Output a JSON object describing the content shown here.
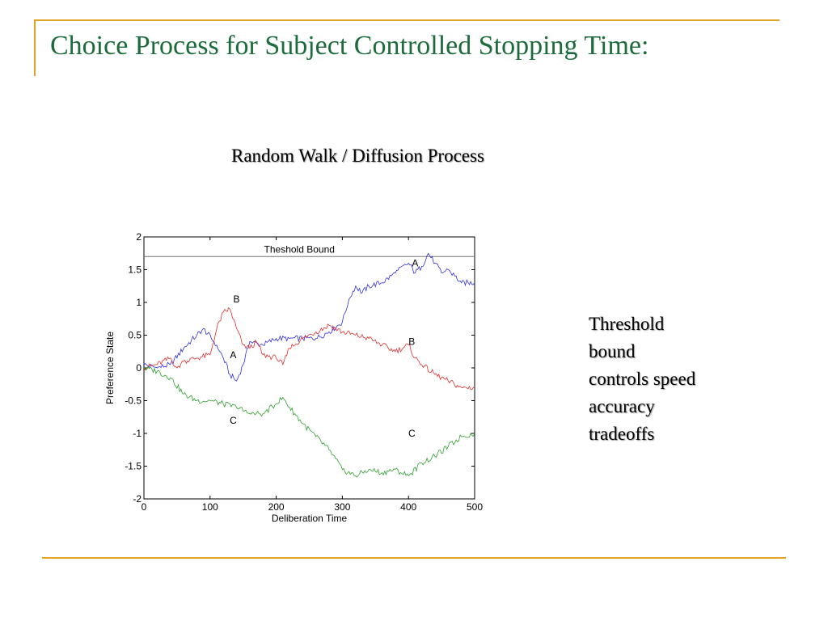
{
  "slide": {
    "title": "Choice Process for Subject Controlled Stopping Time:",
    "chart_heading": "Random Walk / Diffusion Process",
    "side_note_lines": [
      "Threshold",
      "bound",
      "controls speed",
      "accuracy",
      "tradeoffs"
    ],
    "accent_color": "#e0a526",
    "title_color": "#1c6b3a"
  },
  "chart_data": {
    "type": "line",
    "xlabel": "Deliberation Time",
    "ylabel": "Preference State",
    "xlim": [
      0,
      500
    ],
    "ylim": [
      -2,
      2
    ],
    "xticks": [
      0,
      100,
      200,
      300,
      400,
      500
    ],
    "yticks": [
      2,
      1.5,
      1,
      0.5,
      0,
      -0.5,
      -1,
      -1.5,
      -2
    ],
    "grid": false,
    "threshold": {
      "value": 1.7,
      "label": "Theshold  Bound"
    },
    "series": [
      {
        "color": "#3030e0",
        "x": [
          0,
          20,
          40,
          60,
          80,
          90,
          110,
          120,
          130,
          140,
          150,
          160,
          180,
          200,
          220,
          240,
          260,
          280,
          300,
          310,
          320,
          330,
          340,
          360,
          380,
          400,
          410,
          420,
          430,
          440,
          450,
          460,
          480,
          500
        ],
        "y": [
          0.05,
          0.0,
          0.05,
          0.3,
          0.5,
          0.6,
          0.35,
          0.15,
          -0.1,
          -0.2,
          0.05,
          0.4,
          0.35,
          0.45,
          0.45,
          0.45,
          0.45,
          0.55,
          0.7,
          1.05,
          1.25,
          1.15,
          1.25,
          1.3,
          1.45,
          1.6,
          1.45,
          1.55,
          1.75,
          1.6,
          1.45,
          1.5,
          1.3,
          1.3
        ]
      },
      {
        "color": "#e03030",
        "x": [
          0,
          20,
          40,
          50,
          60,
          80,
          100,
          110,
          120,
          130,
          140,
          150,
          160,
          170,
          180,
          200,
          210,
          220,
          240,
          260,
          280,
          300,
          320,
          340,
          360,
          380,
          400,
          410,
          420,
          440,
          460,
          480,
          500
        ],
        "y": [
          0.0,
          0.05,
          0.15,
          0.0,
          0.1,
          0.15,
          0.2,
          0.6,
          0.85,
          0.9,
          0.6,
          0.35,
          0.3,
          0.4,
          0.2,
          0.15,
          0.05,
          0.3,
          0.45,
          0.55,
          0.65,
          0.55,
          0.5,
          0.45,
          0.35,
          0.25,
          0.35,
          0.15,
          0.05,
          -0.1,
          -0.2,
          -0.3,
          -0.3
        ]
      },
      {
        "color": "#30a030",
        "x": [
          0,
          20,
          40,
          60,
          80,
          100,
          120,
          140,
          160,
          180,
          200,
          210,
          220,
          240,
          260,
          280,
          300,
          320,
          340,
          360,
          380,
          400,
          420,
          440,
          460,
          480,
          500
        ],
        "y": [
          0.0,
          -0.05,
          -0.15,
          -0.4,
          -0.5,
          -0.5,
          -0.55,
          -0.6,
          -0.7,
          -0.7,
          -0.55,
          -0.45,
          -0.6,
          -0.85,
          -1.05,
          -1.25,
          -1.55,
          -1.65,
          -1.55,
          -1.6,
          -1.55,
          -1.65,
          -1.45,
          -1.35,
          -1.2,
          -1.05,
          -1.0
        ]
      }
    ],
    "annotations": [
      {
        "text": "A",
        "x": 410,
        "y": 1.55
      },
      {
        "text": "B",
        "x": 140,
        "y": 1.0
      },
      {
        "text": "A",
        "x": 135,
        "y": 0.15
      },
      {
        "text": "B",
        "x": 405,
        "y": 0.35
      },
      {
        "text": "C",
        "x": 135,
        "y": -0.85
      },
      {
        "text": "C",
        "x": 405,
        "y": -1.05
      }
    ]
  }
}
